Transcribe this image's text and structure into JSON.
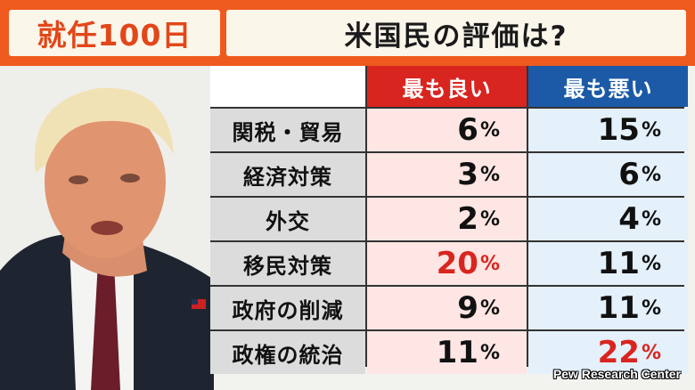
{
  "header": {
    "badge": "就任100日",
    "title": "米国民の評価は?"
  },
  "table": {
    "columns": [
      "最も良い",
      "最も悪い"
    ],
    "rows": [
      {
        "label": "関税・貿易",
        "best": "6",
        "worst": "15"
      },
      {
        "label": "経済対策",
        "best": "3",
        "worst": "6"
      },
      {
        "label": "外交",
        "best": "2",
        "worst": "4"
      },
      {
        "label": "移民対策",
        "best": "20",
        "worst": "11"
      },
      {
        "label": "政府の削減",
        "best": "9",
        "worst": "11"
      },
      {
        "label": "政権の統治",
        "best": "11",
        "worst": "22"
      }
    ],
    "unit": "%"
  },
  "source": "Pew Research Center",
  "colors": {
    "header": "#ef5a1e",
    "best": "#d9251f",
    "worst": "#1c5aa7"
  }
}
